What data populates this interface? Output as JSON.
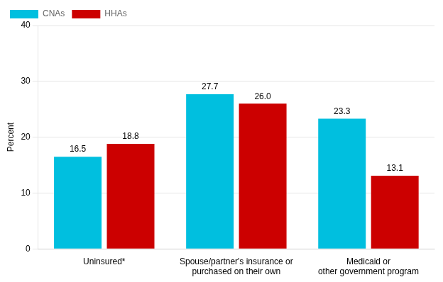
{
  "chart_data": {
    "type": "bar",
    "categories": [
      "Uninsured*",
      "Spouse/partner's insurance or\npurchased on their own",
      "Medicaid or\nother government program"
    ],
    "series": [
      {
        "name": "CNAs",
        "color": "#00BFDF",
        "values": [
          16.5,
          27.7,
          23.3
        ]
      },
      {
        "name": "HHAs",
        "color": "#CC0000",
        "values": [
          18.8,
          26.0,
          13.1
        ],
        "value_labels": [
          "18.8",
          "26.0",
          "13.1"
        ]
      }
    ],
    "ylabel": "Percent",
    "ylim": [
      0,
      40
    ],
    "yticks": [
      0,
      10,
      20,
      30,
      40
    ],
    "grid": true,
    "legend": "upper left",
    "data_labels": true
  }
}
